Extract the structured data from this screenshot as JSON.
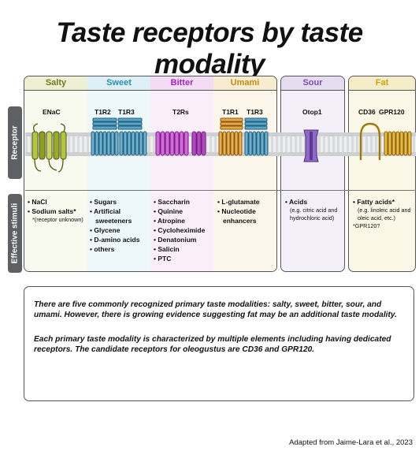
{
  "title": "Taste receptors by taste modality",
  "sidebar": {
    "receptor": "Receptor",
    "stimuli": "Effective stimuli"
  },
  "modalities": [
    {
      "name": "Salty",
      "color": "#6b7b1f",
      "receptors": [
        "ENaC"
      ],
      "stimuli": [
        "NaCl",
        "Sodium salts*"
      ],
      "note": "*(receptor unknown)"
    },
    {
      "name": "Sweet",
      "color": "#2b8fb0",
      "receptors": [
        "T1R2",
        "T1R3"
      ],
      "stimuli": [
        "Sugars",
        "Artificial sweeteners",
        "Glycene",
        "D-amino acids",
        "others"
      ]
    },
    {
      "name": "Bitter",
      "color": "#a425b8",
      "receptors": [
        "T2Rs"
      ],
      "stimuli": [
        "Saccharin",
        "Quinine",
        "Atropine",
        "Cycloheximide",
        "Denatonium",
        "Salicin",
        "PTC"
      ]
    },
    {
      "name": "Umami",
      "color": "#c18a10",
      "receptors": [
        "T1R1",
        "T1R3"
      ],
      "stimuli": [
        "L-glutamate",
        "Nucleotide enhancers"
      ]
    },
    {
      "name": "Sour",
      "color": "#7a4fb4",
      "receptors": [
        "Otop1"
      ],
      "stimuli": [
        "Acids"
      ],
      "note": "(e.g. citric acid and hydrochloric acid)"
    },
    {
      "name": "Fat",
      "color": "#c9a316",
      "receptors": [
        "CD36",
        "GPR120"
      ],
      "stimuli": [
        "Fatty acids*"
      ],
      "note": "(e.g. linoleic acid and oleic acid, etc.)",
      "note2": "*GPR120?"
    }
  ],
  "info": {
    "p1": "There are five commonly recognized primary taste modalities: salty, sweet, bitter, sour, and umami. However, there is growing evidence suggesting fat may be an additional taste modality.",
    "p2": "Each primary taste modality is characterized by multiple elements including having dedicated receptors. The candidate receptors for oleogustus are CD36 and GPR120."
  },
  "credit": "Adapted from Jaime-Lara et al., 2023"
}
